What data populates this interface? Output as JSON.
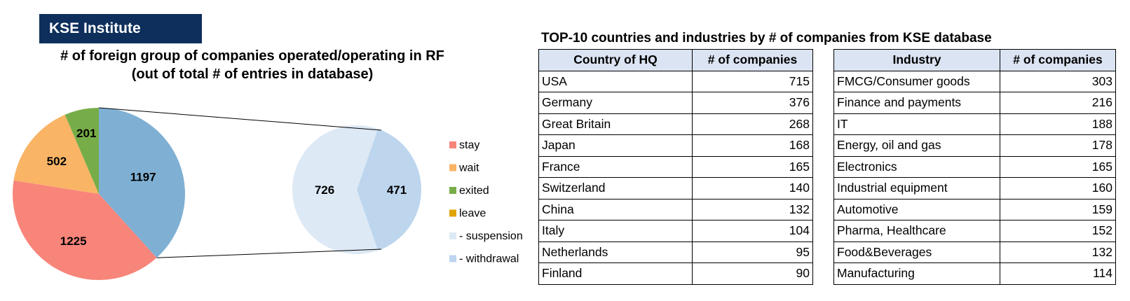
{
  "brand": "KSE Institute",
  "chart_data": [
    {
      "type": "pie",
      "title": "# of foreign group of companies operated/operating in RF (out of total # of entries in database)",
      "title_lines": [
        "# of foreign group of companies operated/operating in RF",
        "(out of total # of entries in database)"
      ],
      "slices": [
        {
          "label": "stay",
          "value": 1225,
          "color": "#f8857a"
        },
        {
          "label": "wait",
          "value": 502,
          "color": "#f9b466"
        },
        {
          "label": "exited",
          "value": 201,
          "color": "#77ad48"
        },
        {
          "label": "leave",
          "value": 1197,
          "color": "#7fb0d4"
        }
      ],
      "breakdown": {
        "of": "leave",
        "slices": [
          {
            "label": "- suspension",
            "value": 726,
            "color": "#dde9f5"
          },
          {
            "label": "- withdrawal",
            "value": 471,
            "color": "#bdd6ee"
          }
        ]
      },
      "legend": [
        {
          "label": "stay",
          "color": "#f8857a"
        },
        {
          "label": "wait",
          "color": "#f9b466"
        },
        {
          "label": "exited",
          "color": "#77ad48"
        },
        {
          "label": "leave",
          "color": "#e0a300"
        },
        {
          "label": "- suspension",
          "color": "#dde9f5"
        },
        {
          "label": "- withdrawal",
          "color": "#bdd6ee"
        }
      ],
      "legend_position": "right"
    },
    {
      "type": "table",
      "title": "TOP-10 countries and industries by # of companies from KSE database",
      "countries": {
        "headers": [
          "Country of HQ",
          "# of companies"
        ],
        "rows": [
          [
            "USA",
            715
          ],
          [
            "Germany",
            376
          ],
          [
            "Great Britain",
            268
          ],
          [
            "Japan",
            168
          ],
          [
            "France",
            165
          ],
          [
            "Switzerland",
            140
          ],
          [
            "China",
            132
          ],
          [
            "Italy",
            104
          ],
          [
            "Netherlands",
            95
          ],
          [
            "Finland",
            90
          ]
        ]
      },
      "industries": {
        "headers": [
          "Industry",
          "# of companies"
        ],
        "rows": [
          [
            "FMCG/Consumer goods",
            303
          ],
          [
            "Finance and payments",
            216
          ],
          [
            "IT",
            188
          ],
          [
            "Energy, oil and gas",
            178
          ],
          [
            "Electronics",
            165
          ],
          [
            "Industrial equipment",
            160
          ],
          [
            "Automotive",
            159
          ],
          [
            "Pharma, Healthcare",
            152
          ],
          [
            "Food&Beverages",
            132
          ],
          [
            "Manufacturing",
            114
          ]
        ]
      }
    }
  ]
}
